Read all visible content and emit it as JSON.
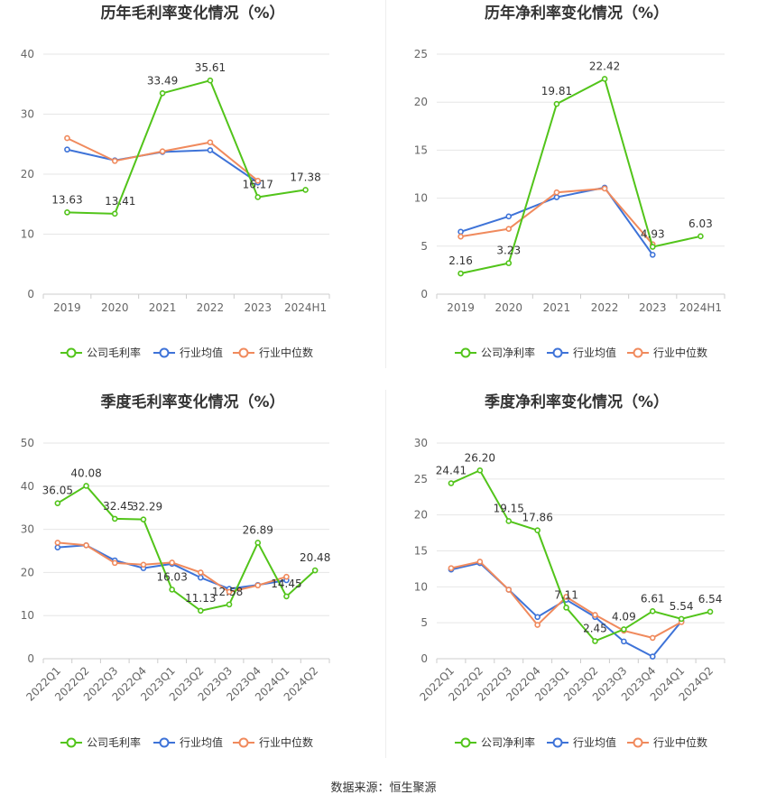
{
  "page": {
    "source_label": "数据来源：恒生聚源"
  },
  "colors": {
    "company": "#52c41a",
    "avg": "#3e73d8",
    "median": "#f08a5d",
    "grid": "#e6e6e6",
    "axis_text": "#666666",
    "label_text": "#333333"
  },
  "chart_data": [
    {
      "id": "annual-gross",
      "type": "line",
      "title": "历年毛利率变化情况（%）",
      "categories": [
        "2019",
        "2020",
        "2021",
        "2022",
        "2023",
        "2024H1"
      ],
      "ylim": [
        0,
        40
      ],
      "yticks": [
        0,
        10,
        20,
        30,
        40
      ],
      "grid": true,
      "legend_position": "bottom",
      "rotate_x_labels": false,
      "series": [
        {
          "name": "公司毛利率",
          "key": "company",
          "values": [
            13.63,
            13.41,
            33.49,
            35.61,
            16.17,
            17.38
          ],
          "labels": [
            "13.63",
            "13.41",
            "33.49",
            "35.61",
            "16.17",
            "17.38"
          ]
        },
        {
          "name": "行业均值",
          "key": "avg",
          "values": [
            24.1,
            22.3,
            23.7,
            24.0,
            18.6,
            null
          ]
        },
        {
          "name": "行业中位数",
          "key": "median",
          "values": [
            26.0,
            22.2,
            23.8,
            25.3,
            18.9,
            null
          ]
        }
      ]
    },
    {
      "id": "annual-net",
      "type": "line",
      "title": "历年净利率变化情况（%）",
      "categories": [
        "2019",
        "2020",
        "2021",
        "2022",
        "2023",
        "2024H1"
      ],
      "ylim": [
        0,
        25
      ],
      "yticks": [
        0,
        5,
        10,
        15,
        20,
        25
      ],
      "grid": true,
      "legend_position": "bottom",
      "rotate_x_labels": false,
      "series": [
        {
          "name": "公司净利率",
          "key": "company",
          "values": [
            2.16,
            3.23,
            19.81,
            22.42,
            4.93,
            6.03
          ],
          "labels": [
            "2.16",
            "3.23",
            "19.81",
            "22.42",
            "4.93",
            "6.03"
          ]
        },
        {
          "name": "行业均值",
          "key": "avg",
          "values": [
            6.5,
            8.1,
            10.1,
            11.1,
            4.1,
            null
          ]
        },
        {
          "name": "行业中位数",
          "key": "median",
          "values": [
            6.0,
            6.8,
            10.6,
            11.0,
            5.2,
            null
          ]
        }
      ]
    },
    {
      "id": "quarterly-gross",
      "type": "line",
      "title": "季度毛利率变化情况（%）",
      "categories": [
        "2022Q1",
        "2022Q2",
        "2022Q3",
        "2022Q4",
        "2023Q1",
        "2023Q2",
        "2023Q3",
        "2023Q4",
        "2024Q1",
        "2024Q2"
      ],
      "ylim": [
        0,
        50
      ],
      "yticks": [
        0,
        10,
        20,
        30,
        40,
        50
      ],
      "grid": true,
      "legend_position": "bottom",
      "rotate_x_labels": true,
      "series": [
        {
          "name": "公司毛利率",
          "key": "company",
          "values": [
            36.05,
            40.08,
            32.45,
            32.29,
            16.03,
            11.13,
            12.58,
            26.89,
            14.45,
            20.48
          ],
          "labels": [
            "36.05",
            "40.08",
            "32.45",
            "32.29",
            "16.03",
            "11.13",
            "12.58",
            "26.89",
            "14.45",
            "20.48"
          ]
        },
        {
          "name": "行业均值",
          "key": "avg",
          "values": [
            25.8,
            26.3,
            22.8,
            21.0,
            22.0,
            18.8,
            16.2,
            17.1,
            18.2,
            null
          ]
        },
        {
          "name": "行业中位数",
          "key": "median",
          "values": [
            26.9,
            26.3,
            22.2,
            21.8,
            22.3,
            20.0,
            15.5,
            17.0,
            19.0,
            null
          ]
        }
      ]
    },
    {
      "id": "quarterly-net",
      "type": "line",
      "title": "季度净利率变化情况（%）",
      "categories": [
        "2022Q1",
        "2022Q2",
        "2022Q3",
        "2022Q4",
        "2023Q1",
        "2023Q2",
        "2023Q3",
        "2023Q4",
        "2024Q1",
        "2024Q2"
      ],
      "ylim": [
        0,
        30
      ],
      "yticks": [
        0,
        5,
        10,
        15,
        20,
        25,
        30
      ],
      "grid": true,
      "legend_position": "bottom",
      "rotate_x_labels": true,
      "series": [
        {
          "name": "公司净利率",
          "key": "company",
          "values": [
            24.41,
            26.2,
            19.15,
            17.86,
            7.11,
            2.45,
            4.09,
            6.61,
            5.54,
            6.54
          ],
          "labels": [
            "24.41",
            "26.20",
            "19.15",
            "17.86",
            "7.11",
            "2.45",
            "4.09",
            "6.61",
            "5.54",
            "6.54"
          ]
        },
        {
          "name": "行业均值",
          "key": "avg",
          "values": [
            12.4,
            13.3,
            9.6,
            5.8,
            8.2,
            5.8,
            2.4,
            0.3,
            5.2,
            null
          ]
        },
        {
          "name": "行业中位数",
          "key": "median",
          "values": [
            12.6,
            13.5,
            9.6,
            4.7,
            8.6,
            6.1,
            3.9,
            2.9,
            5.1,
            null
          ]
        }
      ]
    }
  ]
}
